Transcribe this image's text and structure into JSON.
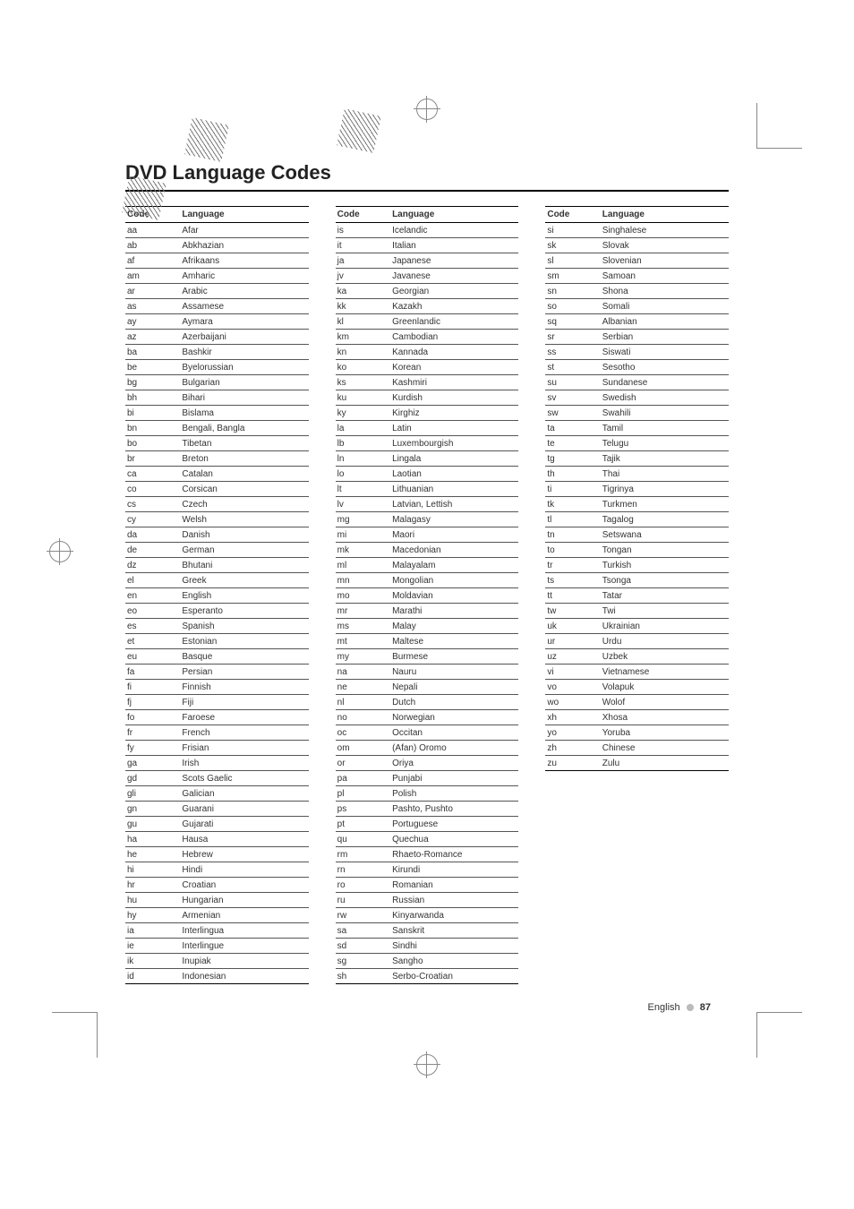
{
  "title": "DVD Language Codes",
  "header_code": "Code",
  "header_lang": "Language",
  "footer_lang": "English",
  "footer_page": "87",
  "col1": [
    [
      "aa",
      "Afar"
    ],
    [
      "ab",
      "Abkhazian"
    ],
    [
      "af",
      "Afrikaans"
    ],
    [
      "am",
      "Amharic"
    ],
    [
      "ar",
      "Arabic"
    ],
    [
      "as",
      "Assamese"
    ],
    [
      "ay",
      "Aymara"
    ],
    [
      "az",
      "Azerbaijani"
    ],
    [
      "ba",
      "Bashkir"
    ],
    [
      "be",
      "Byelorussian"
    ],
    [
      "bg",
      "Bulgarian"
    ],
    [
      "bh",
      "Bihari"
    ],
    [
      "bi",
      "Bislama"
    ],
    [
      "bn",
      "Bengali, Bangla"
    ],
    [
      "bo",
      "Tibetan"
    ],
    [
      "br",
      "Breton"
    ],
    [
      "ca",
      "Catalan"
    ],
    [
      "co",
      "Corsican"
    ],
    [
      "cs",
      "Czech"
    ],
    [
      "cy",
      "Welsh"
    ],
    [
      "da",
      "Danish"
    ],
    [
      "de",
      "German"
    ],
    [
      "dz",
      "Bhutani"
    ],
    [
      "el",
      "Greek"
    ],
    [
      "en",
      "English"
    ],
    [
      "eo",
      "Esperanto"
    ],
    [
      "es",
      "Spanish"
    ],
    [
      "et",
      "Estonian"
    ],
    [
      "eu",
      "Basque"
    ],
    [
      "fa",
      "Persian"
    ],
    [
      "fi",
      "Finnish"
    ],
    [
      "fj",
      "Fiji"
    ],
    [
      "fo",
      "Faroese"
    ],
    [
      "fr",
      "French"
    ],
    [
      "fy",
      "Frisian"
    ],
    [
      "ga",
      "Irish"
    ],
    [
      "gd",
      "Scots Gaelic"
    ],
    [
      "gli",
      "Galician"
    ],
    [
      "gn",
      "Guarani"
    ],
    [
      "gu",
      "Gujarati"
    ],
    [
      "ha",
      "Hausa"
    ],
    [
      "he",
      "Hebrew"
    ],
    [
      "hi",
      "Hindi"
    ],
    [
      "hr",
      "Croatian"
    ],
    [
      "hu",
      "Hungarian"
    ],
    [
      "hy",
      "Armenian"
    ],
    [
      "ia",
      "Interlingua"
    ],
    [
      "ie",
      "Interlingue"
    ],
    [
      "ik",
      "Inupiak"
    ],
    [
      "id",
      "Indonesian"
    ]
  ],
  "col2": [
    [
      "is",
      "Icelandic"
    ],
    [
      "it",
      "Italian"
    ],
    [
      "ja",
      "Japanese"
    ],
    [
      "jv",
      "Javanese"
    ],
    [
      "ka",
      "Georgian"
    ],
    [
      "kk",
      "Kazakh"
    ],
    [
      "kl",
      "Greenlandic"
    ],
    [
      "km",
      "Cambodian"
    ],
    [
      "kn",
      "Kannada"
    ],
    [
      "ko",
      "Korean"
    ],
    [
      "ks",
      "Kashmiri"
    ],
    [
      "ku",
      "Kurdish"
    ],
    [
      "ky",
      "Kirghiz"
    ],
    [
      "la",
      "Latin"
    ],
    [
      "lb",
      "Luxembourgish"
    ],
    [
      "ln",
      "Lingala"
    ],
    [
      "lo",
      "Laotian"
    ],
    [
      "lt",
      "Lithuanian"
    ],
    [
      "lv",
      "Latvian, Lettish"
    ],
    [
      "mg",
      "Malagasy"
    ],
    [
      "mi",
      "Maori"
    ],
    [
      "mk",
      "Macedonian"
    ],
    [
      "ml",
      "Malayalam"
    ],
    [
      "mn",
      "Mongolian"
    ],
    [
      "mo",
      "Moldavian"
    ],
    [
      "mr",
      "Marathi"
    ],
    [
      "ms",
      "Malay"
    ],
    [
      "mt",
      "Maltese"
    ],
    [
      "my",
      "Burmese"
    ],
    [
      "na",
      "Nauru"
    ],
    [
      "ne",
      "Nepali"
    ],
    [
      "nl",
      "Dutch"
    ],
    [
      "no",
      "Norwegian"
    ],
    [
      "oc",
      "Occitan"
    ],
    [
      "om",
      "(Afan) Oromo"
    ],
    [
      "or",
      "Oriya"
    ],
    [
      "pa",
      "Punjabi"
    ],
    [
      "pl",
      "Polish"
    ],
    [
      "ps",
      "Pashto, Pushto"
    ],
    [
      "pt",
      "Portuguese"
    ],
    [
      "qu",
      "Quechua"
    ],
    [
      "rm",
      "Rhaeto-Romance"
    ],
    [
      "rn",
      "Kirundi"
    ],
    [
      "ro",
      "Romanian"
    ],
    [
      "ru",
      "Russian"
    ],
    [
      "rw",
      "Kinyarwanda"
    ],
    [
      "sa",
      "Sanskrit"
    ],
    [
      "sd",
      "Sindhi"
    ],
    [
      "sg",
      "Sangho"
    ],
    [
      "sh",
      "Serbo-Croatian"
    ]
  ],
  "col3": [
    [
      "si",
      "Singhalese"
    ],
    [
      "sk",
      "Slovak"
    ],
    [
      "sl",
      "Slovenian"
    ],
    [
      "sm",
      "Samoan"
    ],
    [
      "sn",
      "Shona"
    ],
    [
      "so",
      "Somali"
    ],
    [
      "sq",
      "Albanian"
    ],
    [
      "sr",
      "Serbian"
    ],
    [
      "ss",
      "Siswati"
    ],
    [
      "st",
      "Sesotho"
    ],
    [
      "su",
      "Sundanese"
    ],
    [
      "sv",
      "Swedish"
    ],
    [
      "sw",
      "Swahili"
    ],
    [
      "ta",
      "Tamil"
    ],
    [
      "te",
      "Telugu"
    ],
    [
      "tg",
      "Tajik"
    ],
    [
      "th",
      "Thai"
    ],
    [
      "ti",
      "Tigrinya"
    ],
    [
      "tk",
      "Turkmen"
    ],
    [
      "tl",
      "Tagalog"
    ],
    [
      "tn",
      "Setswana"
    ],
    [
      "to",
      "Tongan"
    ],
    [
      "tr",
      "Turkish"
    ],
    [
      "ts",
      "Tsonga"
    ],
    [
      "tt",
      "Tatar"
    ],
    [
      "tw",
      "Twi"
    ],
    [
      "uk",
      "Ukrainian"
    ],
    [
      "ur",
      "Urdu"
    ],
    [
      "uz",
      "Uzbek"
    ],
    [
      "vi",
      "Vietnamese"
    ],
    [
      "vo",
      "Volapuk"
    ],
    [
      "wo",
      "Wolof"
    ],
    [
      "xh",
      "Xhosa"
    ],
    [
      "yo",
      "Yoruba"
    ],
    [
      "zh",
      "Chinese"
    ],
    [
      "zu",
      "Zulu"
    ]
  ]
}
